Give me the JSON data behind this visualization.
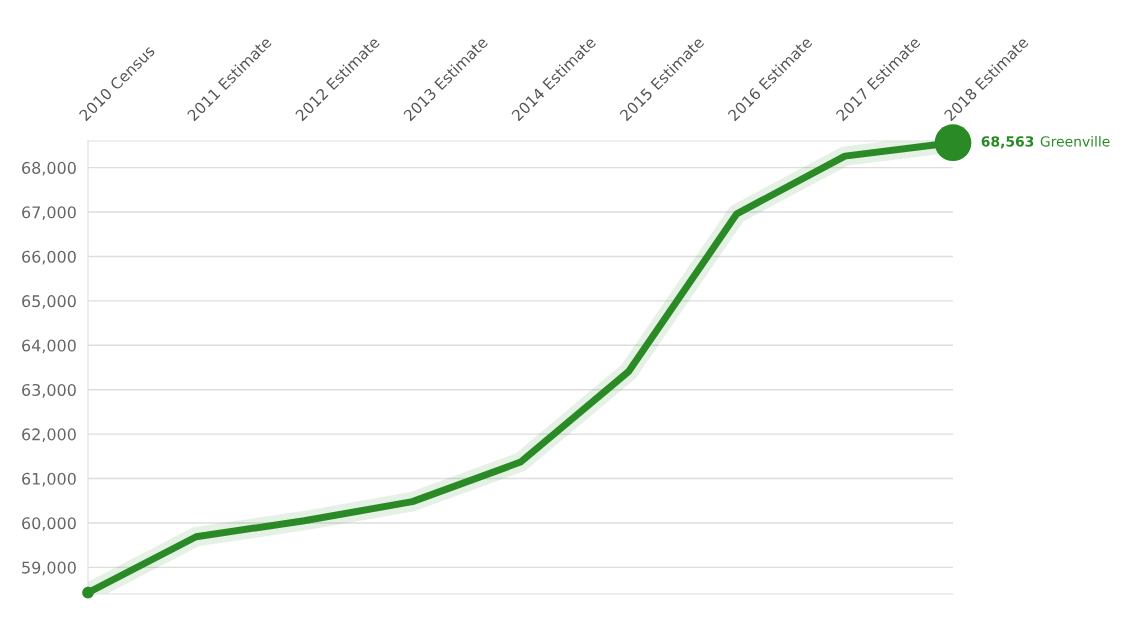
{
  "chart_data": {
    "type": "line",
    "categories": [
      "2010 Census",
      "2011 Estimate",
      "2012 Estimate",
      "2013 Estimate",
      "2014 Estimate",
      "2015 Estimate",
      "2016 Estimate",
      "2017 Estimate",
      "2018 Estimate"
    ],
    "series": [
      {
        "name": "Greenville",
        "color": "#2a8a26",
        "values": [
          58430,
          59690,
          60050,
          60480,
          61370,
          63410,
          66960,
          68260,
          68563
        ],
        "value_labels": [
          null,
          null,
          null,
          null,
          null,
          null,
          null,
          null,
          "68,563"
        ]
      }
    ],
    "ylim": [
      58400,
      68600
    ],
    "yticks": [
      {
        "value": 59000,
        "label": "59,000"
      },
      {
        "value": 60000,
        "label": "60,000"
      },
      {
        "value": 61000,
        "label": "61,000"
      },
      {
        "value": 62000,
        "label": "62,000"
      },
      {
        "value": 63000,
        "label": "63,000"
      },
      {
        "value": 64000,
        "label": "64,000"
      },
      {
        "value": 65000,
        "label": "65,000"
      },
      {
        "value": 66000,
        "label": "66,000"
      },
      {
        "value": 67000,
        "label": "67,000"
      },
      {
        "value": 68000,
        "label": "68,000"
      }
    ],
    "grid": "y",
    "line_style": "solid"
  }
}
